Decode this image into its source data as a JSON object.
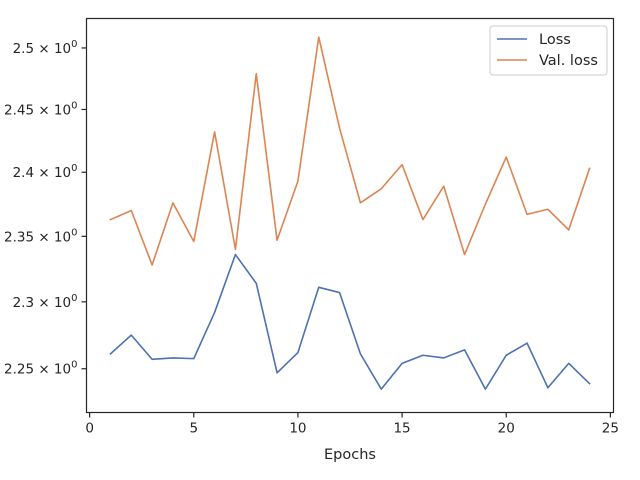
{
  "chart_data": {
    "type": "line",
    "title": "",
    "xlabel": "Epochs",
    "ylabel": "",
    "yscale": "log",
    "xlim": [
      -0.15,
      25.15
    ],
    "ylim": [
      2.2179,
      2.5243
    ],
    "x_ticks": [
      0,
      5,
      10,
      15,
      20,
      25
    ],
    "x_tick_labels": [
      "0",
      "5",
      "10",
      "15",
      "20",
      "25"
    ],
    "y_ticks": [
      2.25,
      2.3,
      2.35,
      2.4,
      2.45,
      2.5
    ],
    "y_tick_labels": [
      {
        "mantissa": "2.25",
        "base": "10",
        "exp": "0"
      },
      {
        "mantissa": "2.3",
        "base": "10",
        "exp": "0"
      },
      {
        "mantissa": "2.35",
        "base": "10",
        "exp": "0"
      },
      {
        "mantissa": "2.4",
        "base": "10",
        "exp": "0"
      },
      {
        "mantissa": "2.45",
        "base": "10",
        "exp": "0"
      },
      {
        "mantissa": "2.5",
        "base": "10",
        "exp": "0"
      }
    ],
    "grid": false,
    "legend_position": "top-right",
    "x": [
      1,
      2,
      3,
      4,
      5,
      6,
      7,
      8,
      9,
      10,
      11,
      12,
      13,
      14,
      15,
      16,
      17,
      18,
      19,
      20,
      21,
      22,
      23,
      24
    ],
    "series": [
      {
        "name": "Loss",
        "color": "#4c72b0",
        "values": [
          2.261,
          2.275,
          2.257,
          2.258,
          2.2575,
          2.292,
          2.336,
          2.314,
          2.247,
          2.262,
          2.311,
          2.307,
          2.261,
          2.235,
          2.254,
          2.26,
          2.258,
          2.264,
          2.235,
          2.26,
          2.269,
          2.236,
          2.254,
          2.239
        ]
      },
      {
        "name": "Val. loss",
        "color": "#dd8452",
        "values": [
          2.363,
          2.37,
          2.328,
          2.376,
          2.346,
          2.432,
          2.34,
          2.479,
          2.347,
          2.393,
          2.509,
          2.435,
          2.376,
          2.387,
          2.406,
          2.363,
          2.389,
          2.336,
          2.375,
          2.412,
          2.367,
          2.371,
          2.355,
          2.403
        ]
      }
    ]
  }
}
